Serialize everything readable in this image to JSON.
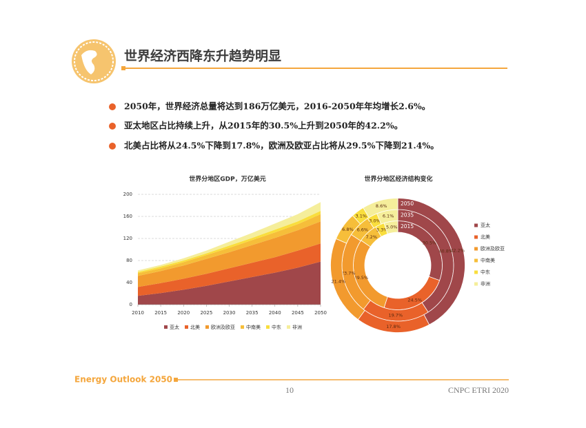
{
  "header": {
    "title": "世界经济西降东升趋势明显"
  },
  "bullets": [
    "2050年，世界经济总量将达到186万亿美元，2016-2050年年均增长2.6%。",
    "亚太地区占比持续上升，从2015年的30.5%上升到2050年的42.2%。",
    "北美占比将从24.5%下降到17.8%，欧洲及欧亚占比将从29.5%下降到21.4%。"
  ],
  "chart_data": [
    {
      "type": "stacked-area",
      "title": "世界分地区GDP，万亿美元",
      "x": [
        2010,
        2015,
        2020,
        2025,
        2030,
        2035,
        2040,
        2045,
        2050
      ],
      "xlim": [
        2010,
        2050
      ],
      "xticks": [
        2010,
        2015,
        2020,
        2025,
        2030,
        2035,
        2040,
        2045,
        2050
      ],
      "ylim": [
        0,
        200
      ],
      "yticks": [
        0,
        40,
        80,
        120,
        160,
        200
      ],
      "grid": true,
      "legend": "bottom",
      "series": [
        {
          "name": "亚太",
          "color": "#a0474a",
          "values": [
            16,
            21,
            27,
            34,
            42,
            50,
            58,
            67,
            78
          ]
        },
        {
          "name": "北美",
          "color": "#e9622a",
          "values": [
            16,
            18,
            20,
            22,
            24,
            26,
            28,
            31,
            33
          ]
        },
        {
          "name": "欧洲及欧亚",
          "color": "#f29a2e",
          "values": [
            20,
            22,
            24,
            27,
            29,
            32,
            35,
            37,
            40
          ]
        },
        {
          "name": "中南美",
          "color": "#f6be3a",
          "values": [
            5,
            5,
            6,
            7,
            8,
            9,
            10,
            11,
            13
          ]
        },
        {
          "name": "中东",
          "color": "#f9de3d",
          "values": [
            2,
            3,
            3,
            3,
            4,
            4,
            5,
            5,
            6
          ]
        },
        {
          "name": "非洲",
          "color": "#f5ee9b",
          "values": [
            3,
            3,
            4,
            5,
            7,
            9,
            11,
            13,
            16
          ]
        }
      ]
    },
    {
      "type": "donut",
      "title": "世界分地区经济结构变化",
      "categories": [
        "亚太",
        "北美",
        "欧洲及欧亚",
        "中南美",
        "中东",
        "非洲"
      ],
      "colors": [
        "#a0474a",
        "#e9622a",
        "#f29a2e",
        "#f6be3a",
        "#f9de3d",
        "#f5ee9b"
      ],
      "legend": "right",
      "rings": [
        {
          "name": "2015",
          "values": [
            30.5,
            24.5,
            29.5,
            7.2,
            3.3,
            5.0
          ],
          "value_labels": [
            "30.5%",
            "24.5%",
            "29.5%",
            "7.2%",
            "3.3%",
            "5.0%"
          ]
        },
        {
          "name": "2035",
          "values": [
            40.8,
            19.7,
            23.7,
            6.6,
            3.0,
            6.1
          ],
          "value_labels": [
            "40.8%",
            "19.7%",
            "23.7%",
            "6.6%",
            "3.0%",
            "6.1%"
          ]
        },
        {
          "name": "2050",
          "values": [
            42.2,
            17.8,
            21.4,
            6.8,
            3.1,
            8.6
          ],
          "value_labels": [
            "42.2%",
            "17.8%",
            "21.4%",
            "6.8%",
            "3.1%",
            "8.6%"
          ]
        }
      ]
    }
  ],
  "footer": {
    "brand": "Energy Outlook 2050",
    "page": "10",
    "org": "CNPC ETRI 2020"
  }
}
